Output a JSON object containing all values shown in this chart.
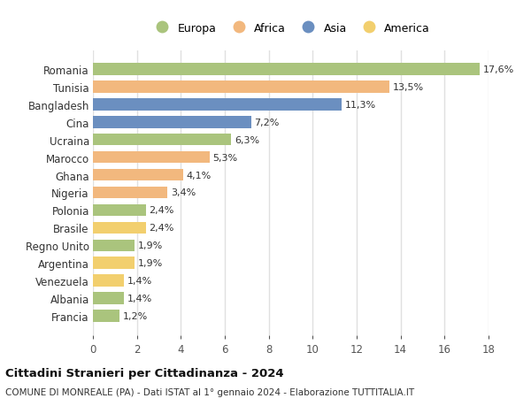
{
  "countries": [
    "Francia",
    "Albania",
    "Venezuela",
    "Argentina",
    "Regno Unito",
    "Brasile",
    "Polonia",
    "Nigeria",
    "Ghana",
    "Marocco",
    "Ucraina",
    "Cina",
    "Bangladesh",
    "Tunisia",
    "Romania"
  ],
  "values": [
    1.2,
    1.4,
    1.4,
    1.9,
    1.9,
    2.4,
    2.4,
    3.4,
    4.1,
    5.3,
    6.3,
    7.2,
    11.3,
    13.5,
    17.6
  ],
  "labels": [
    "1,2%",
    "1,4%",
    "1,4%",
    "1,9%",
    "1,9%",
    "2,4%",
    "2,4%",
    "3,4%",
    "4,1%",
    "5,3%",
    "6,3%",
    "7,2%",
    "11,3%",
    "13,5%",
    "17,6%"
  ],
  "continents": [
    "Europa",
    "Europa",
    "America",
    "America",
    "Europa",
    "America",
    "Europa",
    "Africa",
    "Africa",
    "Africa",
    "Europa",
    "Asia",
    "Asia",
    "Africa",
    "Europa"
  ],
  "colors": {
    "Europa": "#aac47d",
    "Africa": "#f2b87e",
    "Asia": "#6b8fc0",
    "America": "#f2cf6e"
  },
  "legend_order": [
    "Europa",
    "Africa",
    "Asia",
    "America"
  ],
  "title": "Cittadini Stranieri per Cittadinanza - 2024",
  "subtitle": "COMUNE DI MONREALE (PA) - Dati ISTAT al 1° gennaio 2024 - Elaborazione TUTTITALIA.IT",
  "xlim": [
    0,
    18
  ],
  "xticks": [
    0,
    2,
    4,
    6,
    8,
    10,
    12,
    14,
    16,
    18
  ],
  "background_color": "#ffffff",
  "grid_color": "#e0e0e0",
  "bar_height": 0.68,
  "label_fontsize": 8.0,
  "tick_fontsize": 8.5,
  "legend_fontsize": 9.0,
  "title_fontsize": 9.5,
  "subtitle_fontsize": 7.5
}
